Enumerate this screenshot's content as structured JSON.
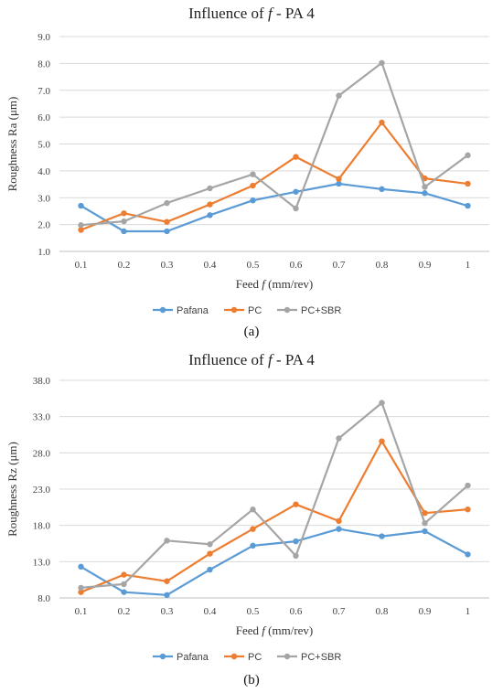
{
  "chart_data": [
    {
      "type": "line",
      "title_prefix": "Influence of ",
      "title_var": "f",
      "title_suffix": " - PA 4",
      "xlabel_prefix": "Feed ",
      "xlabel_var": "f",
      "xlabel_suffix": " (mm/rev)",
      "ylabel": "Roughness Ra (μm)",
      "categories": [
        "0.1",
        "0.2",
        "0.3",
        "0.4",
        "0.5",
        "0.6",
        "0.7",
        "0.8",
        "0.9",
        "1"
      ],
      "yticks": [
        "1.0",
        "2.0",
        "3.0",
        "4.0",
        "5.0",
        "6.0",
        "7.0",
        "8.0",
        "9.0"
      ],
      "ylim": [
        1.0,
        9.0
      ],
      "grid": true,
      "legend_position": "bottom",
      "series": [
        {
          "name": "Pafana",
          "color": "#5b9bd5",
          "values": [
            2.7,
            1.75,
            1.75,
            2.35,
            2.9,
            3.22,
            3.52,
            3.32,
            3.17,
            2.7
          ]
        },
        {
          "name": "PC",
          "color": "#ed7d31",
          "values": [
            1.8,
            2.42,
            2.1,
            2.75,
            3.45,
            4.52,
            3.7,
            5.8,
            3.72,
            3.52
          ]
        },
        {
          "name": "PC+SBR",
          "color": "#a5a5a5",
          "values": [
            1.98,
            2.12,
            2.8,
            3.35,
            3.87,
            2.6,
            6.8,
            8.02,
            3.4,
            4.58
          ]
        }
      ],
      "caption": "(a)"
    },
    {
      "type": "line",
      "title_prefix": "Influence of ",
      "title_var": "f",
      "title_suffix": " - PA 4",
      "xlabel_prefix": "Feed ",
      "xlabel_var": "f",
      "xlabel_suffix": " (mm/rev)",
      "ylabel": "Roughness Rz (μm)",
      "categories": [
        "0.1",
        "0.2",
        "0.3",
        "0.4",
        "0.5",
        "0.6",
        "0.7",
        "0.8",
        "0.9",
        "1"
      ],
      "yticks": [
        "8.0",
        "13.0",
        "18.0",
        "23.0",
        "28.0",
        "33.0",
        "38.0"
      ],
      "ylim": [
        8.0,
        38.0
      ],
      "grid": true,
      "legend_position": "bottom",
      "series": [
        {
          "name": "Pafana",
          "color": "#5b9bd5",
          "values": [
            12.3,
            8.8,
            8.4,
            11.9,
            15.2,
            15.8,
            17.5,
            16.5,
            17.2,
            14.0
          ]
        },
        {
          "name": "PC",
          "color": "#ed7d31",
          "values": [
            8.8,
            11.2,
            10.3,
            14.1,
            17.5,
            20.9,
            18.6,
            29.6,
            19.7,
            20.2
          ]
        },
        {
          "name": "PC+SBR",
          "color": "#a5a5a5",
          "values": [
            9.4,
            9.9,
            15.9,
            15.4,
            20.2,
            13.8,
            30.0,
            34.9,
            18.3,
            23.5
          ]
        }
      ],
      "caption": "(b)"
    }
  ]
}
